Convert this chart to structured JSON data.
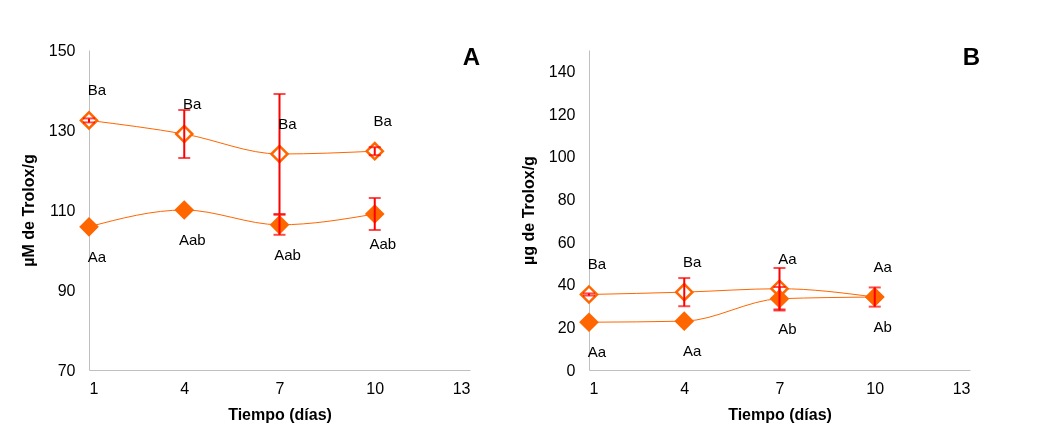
{
  "chart_data": [
    {
      "type": "line",
      "title": "A",
      "xlabel": "Tiempo (días)",
      "ylabel": "µM de Trolox/g",
      "x": [
        1,
        4,
        7,
        10
      ],
      "xlim": [
        1,
        13
      ],
      "xticks": [
        1,
        4,
        7,
        10,
        13
      ],
      "ylim": [
        70,
        150
      ],
      "yticks": [
        70,
        90,
        110,
        130,
        150
      ],
      "marker": "diamond",
      "line_style": "solid",
      "series": [
        {
          "color": "#ff6600",
          "values": [
            132.4,
            129,
            124,
            124.7
          ],
          "errors": [
            0.5,
            6,
            15,
            1
          ],
          "value_labels": [
            "Ba",
            "Ba",
            "Ba",
            "Ba"
          ]
        },
        {
          "color": "#ff6600",
          "values": [
            105.8,
            110,
            106.3,
            109
          ],
          "errors": [
            null,
            null,
            2.5,
            4
          ],
          "value_labels": [
            "Aa",
            "Aab",
            "Aab",
            "Aab"
          ]
        }
      ]
    },
    {
      "type": "line",
      "title": "B",
      "xlabel": "Tiempo (días)",
      "ylabel": "µg de Trolox/g",
      "x": [
        1,
        4,
        7,
        10
      ],
      "xlim": [
        1,
        13
      ],
      "xticks": [
        1,
        4,
        7,
        10,
        13
      ],
      "ylim": [
        0,
        150
      ],
      "yticks": [
        0,
        20,
        40,
        60,
        80,
        100,
        120,
        140
      ],
      "marker": "diamond",
      "line_style": "solid",
      "series": [
        {
          "color": "#ff6600",
          "values": [
            35.4,
            36.5,
            38.1,
            34.2
          ],
          "errors": [
            0.5,
            6.6,
            9.7,
            null
          ],
          "value_labels": [
            "Ba",
            "Ba",
            "Aa",
            "Aa"
          ]
        },
        {
          "color": "#ff6600",
          "values": [
            22.4,
            22.9,
            33.4,
            34.2
          ],
          "errors": [
            null,
            null,
            5.5,
            4.5
          ],
          "value_labels": [
            "Aa",
            "Aa",
            "Ab",
            "Ab"
          ]
        }
      ]
    }
  ]
}
